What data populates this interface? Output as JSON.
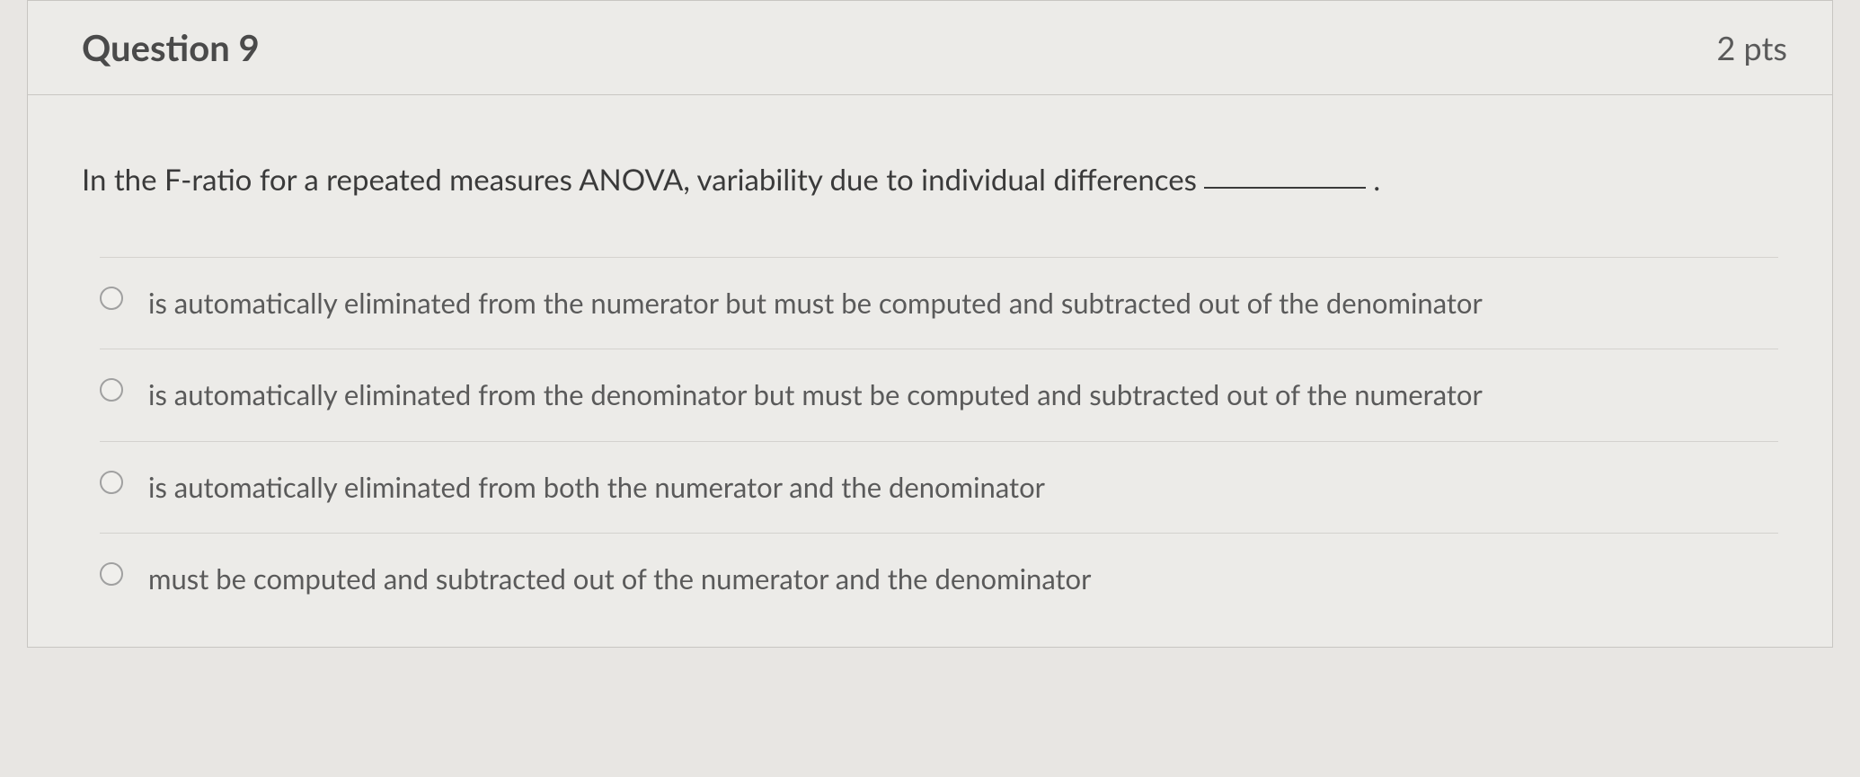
{
  "question": {
    "title": "Question 9",
    "points": "2 pts",
    "text": "In the F-ratio for a repeated measures ANOVA, variability due to individual differences",
    "options": [
      "is automatically eliminated from the numerator but must be computed and subtracted out of the denominator",
      "is automatically eliminated from the denominator but must be computed and subtracted out of the numerator",
      "is automatically eliminated from both the numerator and the denominator",
      "must be computed and subtracted out of the numerator and the denominator"
    ]
  },
  "style": {
    "background_color": "#e8e6e3",
    "card_background": "#ecebe8",
    "border_color": "#c8c6c2",
    "divider_color": "#d4d2ce",
    "title_color": "#4a4a4a",
    "text_color": "#3a3a3a",
    "option_color": "#5a5a5a",
    "radio_border": "#a0a0a0",
    "title_fontsize": 40,
    "points_fontsize": 36,
    "question_fontsize": 33,
    "option_fontsize": 31
  }
}
